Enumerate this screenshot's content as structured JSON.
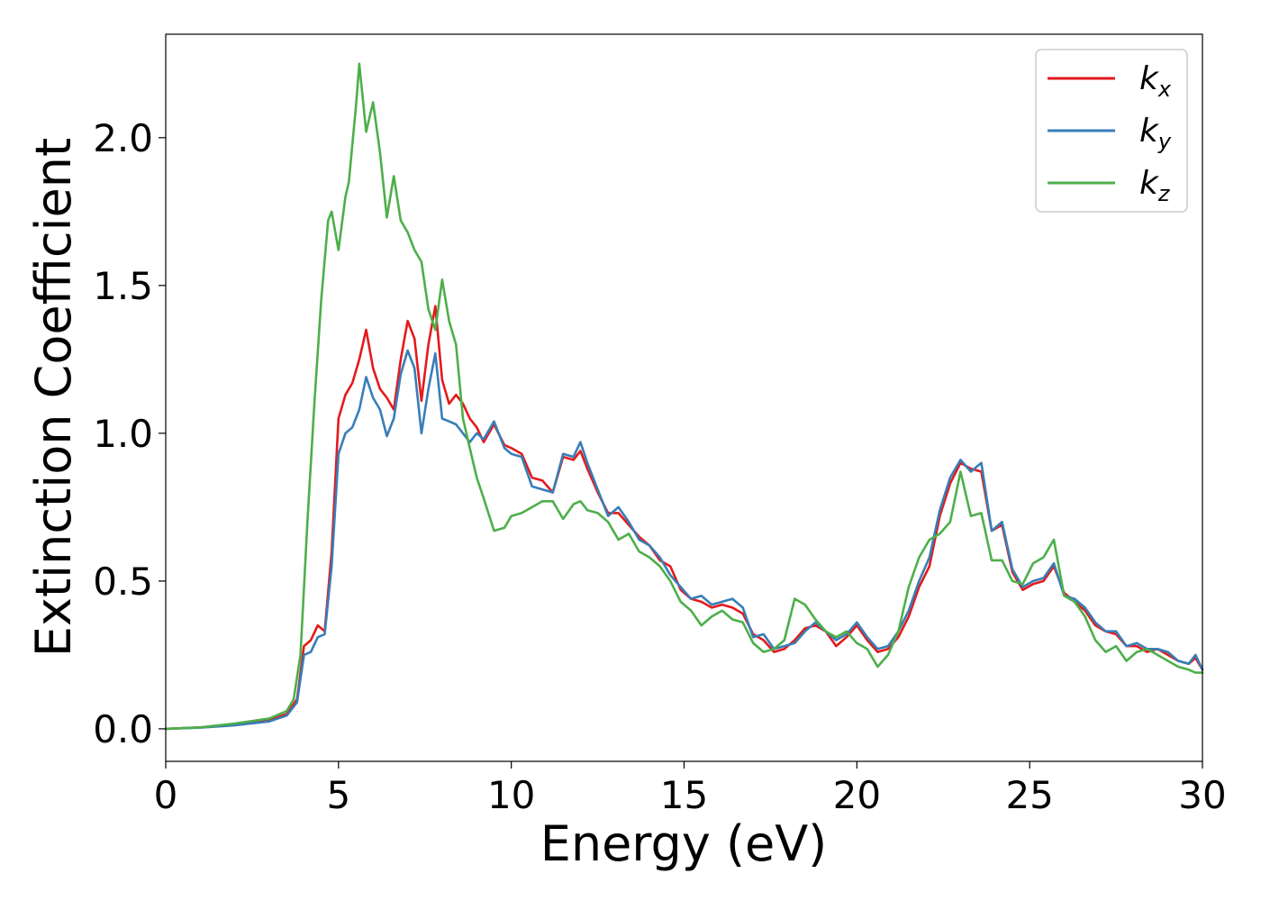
{
  "chart_data": {
    "type": "line",
    "xlabel": "Energy (eV)",
    "ylabel": "Extinction Coefficient",
    "xlim": [
      0,
      30
    ],
    "ylim": [
      -0.11,
      2.35
    ],
    "xticks": [
      0,
      5,
      10,
      15,
      20,
      25,
      30
    ],
    "yticks": [
      0.0,
      0.5,
      1.0,
      1.5,
      2.0
    ],
    "xtick_labels": [
      "0",
      "5",
      "10",
      "15",
      "20",
      "25",
      "30"
    ],
    "ytick_labels": [
      "0.0",
      "0.5",
      "1.0",
      "1.5",
      "2.0"
    ],
    "grid": false,
    "legend_position": "top-right",
    "series": [
      {
        "name": "k_x",
        "legend_main": "k",
        "legend_sub": "x",
        "color": "#e41a1c",
        "x": [
          0,
          1,
          2,
          3,
          3.5,
          3.8,
          4.0,
          4.2,
          4.4,
          4.6,
          4.8,
          5.0,
          5.2,
          5.4,
          5.6,
          5.8,
          6.0,
          6.2,
          6.4,
          6.6,
          6.8,
          7.0,
          7.2,
          7.4,
          7.6,
          7.8,
          8.0,
          8.2,
          8.4,
          8.6,
          8.8,
          9.0,
          9.2,
          9.5,
          9.8,
          10.0,
          10.3,
          10.6,
          10.9,
          11.2,
          11.5,
          11.8,
          12.0,
          12.2,
          12.5,
          12.8,
          13.1,
          13.4,
          13.7,
          14.0,
          14.3,
          14.6,
          14.9,
          15.2,
          15.5,
          15.8,
          16.1,
          16.4,
          16.7,
          17.0,
          17.3,
          17.6,
          17.9,
          18.2,
          18.5,
          18.8,
          19.1,
          19.4,
          19.7,
          20.0,
          20.3,
          20.6,
          20.9,
          21.2,
          21.5,
          21.8,
          22.1,
          22.4,
          22.7,
          23.0,
          23.3,
          23.6,
          23.9,
          24.2,
          24.5,
          24.8,
          25.1,
          25.4,
          25.7,
          26.0,
          26.3,
          26.6,
          26.9,
          27.2,
          27.5,
          27.8,
          28.1,
          28.4,
          28.7,
          29.0,
          29.3,
          29.6,
          29.8,
          30.0
        ],
        "y": [
          0.0,
          0.005,
          0.015,
          0.03,
          0.05,
          0.1,
          0.28,
          0.3,
          0.35,
          0.33,
          0.6,
          1.05,
          1.13,
          1.17,
          1.25,
          1.35,
          1.22,
          1.15,
          1.12,
          1.08,
          1.25,
          1.38,
          1.32,
          1.11,
          1.3,
          1.43,
          1.18,
          1.1,
          1.13,
          1.1,
          1.05,
          1.02,
          0.97,
          1.03,
          0.96,
          0.95,
          0.93,
          0.85,
          0.84,
          0.8,
          0.92,
          0.91,
          0.94,
          0.88,
          0.8,
          0.73,
          0.73,
          0.69,
          0.65,
          0.62,
          0.57,
          0.55,
          0.47,
          0.44,
          0.43,
          0.41,
          0.42,
          0.41,
          0.39,
          0.32,
          0.3,
          0.26,
          0.27,
          0.3,
          0.34,
          0.35,
          0.33,
          0.28,
          0.31,
          0.35,
          0.3,
          0.26,
          0.27,
          0.31,
          0.38,
          0.48,
          0.55,
          0.72,
          0.83,
          0.9,
          0.88,
          0.87,
          0.67,
          0.69,
          0.53,
          0.47,
          0.49,
          0.5,
          0.55,
          0.46,
          0.43,
          0.4,
          0.35,
          0.33,
          0.32,
          0.28,
          0.28,
          0.26,
          0.27,
          0.25,
          0.23,
          0.22,
          0.24,
          0.2
        ]
      },
      {
        "name": "k_y",
        "legend_main": "k",
        "legend_sub": "y",
        "color": "#377eb8",
        "x": [
          0,
          1,
          2,
          3,
          3.5,
          3.8,
          4.0,
          4.2,
          4.4,
          4.6,
          4.8,
          5.0,
          5.2,
          5.4,
          5.6,
          5.8,
          6.0,
          6.2,
          6.4,
          6.6,
          6.8,
          7.0,
          7.2,
          7.4,
          7.6,
          7.8,
          8.0,
          8.2,
          8.4,
          8.6,
          8.8,
          9.0,
          9.2,
          9.5,
          9.8,
          10.0,
          10.3,
          10.6,
          10.9,
          11.2,
          11.5,
          11.8,
          12.0,
          12.2,
          12.5,
          12.8,
          13.1,
          13.4,
          13.7,
          14.0,
          14.3,
          14.6,
          14.9,
          15.2,
          15.5,
          15.8,
          16.1,
          16.4,
          16.7,
          17.0,
          17.3,
          17.6,
          17.9,
          18.2,
          18.5,
          18.8,
          19.1,
          19.4,
          19.7,
          20.0,
          20.3,
          20.6,
          20.9,
          21.2,
          21.5,
          21.8,
          22.1,
          22.4,
          22.7,
          23.0,
          23.3,
          23.6,
          23.9,
          24.2,
          24.5,
          24.8,
          25.1,
          25.4,
          25.7,
          26.0,
          26.3,
          26.6,
          26.9,
          27.2,
          27.5,
          27.8,
          28.1,
          28.4,
          28.7,
          29.0,
          29.3,
          29.6,
          29.8,
          30.0
        ],
        "y": [
          0.0,
          0.004,
          0.012,
          0.025,
          0.045,
          0.09,
          0.25,
          0.26,
          0.31,
          0.32,
          0.55,
          0.93,
          1.0,
          1.02,
          1.08,
          1.19,
          1.12,
          1.08,
          0.99,
          1.05,
          1.2,
          1.28,
          1.22,
          1.0,
          1.15,
          1.27,
          1.05,
          1.04,
          1.03,
          1.0,
          0.97,
          1.0,
          0.98,
          1.04,
          0.95,
          0.93,
          0.92,
          0.82,
          0.81,
          0.8,
          0.93,
          0.92,
          0.97,
          0.9,
          0.81,
          0.72,
          0.75,
          0.7,
          0.64,
          0.62,
          0.58,
          0.52,
          0.48,
          0.44,
          0.45,
          0.42,
          0.43,
          0.44,
          0.41,
          0.31,
          0.32,
          0.27,
          0.28,
          0.29,
          0.33,
          0.36,
          0.33,
          0.3,
          0.32,
          0.36,
          0.31,
          0.27,
          0.28,
          0.33,
          0.4,
          0.5,
          0.58,
          0.74,
          0.85,
          0.91,
          0.87,
          0.9,
          0.67,
          0.7,
          0.54,
          0.48,
          0.5,
          0.51,
          0.56,
          0.45,
          0.44,
          0.41,
          0.36,
          0.33,
          0.33,
          0.28,
          0.29,
          0.27,
          0.27,
          0.26,
          0.23,
          0.22,
          0.25,
          0.2
        ]
      },
      {
        "name": "k_z",
        "legend_main": "k",
        "legend_sub": "z",
        "color": "#4daf4a",
        "x": [
          0,
          1,
          2,
          3,
          3.5,
          3.7,
          3.9,
          4.1,
          4.3,
          4.5,
          4.7,
          4.8,
          5.0,
          5.2,
          5.3,
          5.5,
          5.6,
          5.8,
          6.0,
          6.2,
          6.4,
          6.6,
          6.8,
          7.0,
          7.2,
          7.4,
          7.6,
          7.8,
          8.0,
          8.2,
          8.4,
          8.6,
          8.8,
          9.0,
          9.2,
          9.5,
          9.8,
          10.0,
          10.3,
          10.6,
          10.9,
          11.2,
          11.5,
          11.8,
          12.0,
          12.2,
          12.5,
          12.8,
          13.1,
          13.4,
          13.7,
          14.0,
          14.3,
          14.6,
          14.9,
          15.2,
          15.5,
          15.8,
          16.1,
          16.4,
          16.7,
          17.0,
          17.3,
          17.6,
          17.9,
          18.2,
          18.5,
          18.8,
          19.1,
          19.4,
          19.7,
          20.0,
          20.3,
          20.6,
          20.9,
          21.2,
          21.5,
          21.8,
          22.1,
          22.4,
          22.7,
          23.0,
          23.3,
          23.6,
          23.9,
          24.2,
          24.5,
          24.8,
          25.1,
          25.4,
          25.7,
          26.0,
          26.3,
          26.6,
          26.9,
          27.2,
          27.5,
          27.8,
          28.1,
          28.4,
          28.7,
          29.0,
          29.3,
          29.6,
          29.8,
          30.0
        ],
        "y": [
          0.0,
          0.005,
          0.018,
          0.035,
          0.06,
          0.1,
          0.25,
          0.7,
          1.1,
          1.45,
          1.72,
          1.75,
          1.62,
          1.8,
          1.85,
          2.1,
          2.25,
          2.02,
          2.12,
          1.95,
          1.73,
          1.87,
          1.72,
          1.68,
          1.62,
          1.58,
          1.42,
          1.35,
          1.52,
          1.38,
          1.3,
          1.05,
          0.95,
          0.85,
          0.78,
          0.67,
          0.68,
          0.72,
          0.73,
          0.75,
          0.77,
          0.77,
          0.71,
          0.76,
          0.77,
          0.74,
          0.73,
          0.7,
          0.64,
          0.66,
          0.6,
          0.58,
          0.55,
          0.5,
          0.43,
          0.4,
          0.35,
          0.38,
          0.4,
          0.37,
          0.36,
          0.29,
          0.26,
          0.27,
          0.3,
          0.44,
          0.42,
          0.37,
          0.33,
          0.31,
          0.33,
          0.29,
          0.27,
          0.21,
          0.25,
          0.33,
          0.48,
          0.58,
          0.64,
          0.66,
          0.7,
          0.87,
          0.72,
          0.73,
          0.57,
          0.57,
          0.5,
          0.49,
          0.56,
          0.58,
          0.64,
          0.45,
          0.43,
          0.38,
          0.3,
          0.26,
          0.28,
          0.23,
          0.26,
          0.27,
          0.25,
          0.23,
          0.21,
          0.2,
          0.19,
          0.19
        ]
      }
    ]
  }
}
